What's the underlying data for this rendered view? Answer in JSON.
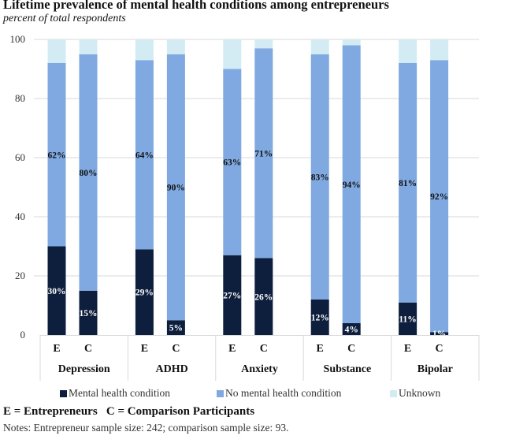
{
  "title": "Lifetime prevalence of mental health conditions among entrepreneurs",
  "subtitle": "percent of total respondents",
  "key_text": "E = Entrepreneurs   C = Comparison Participants",
  "notes": "Notes: Entrepreneur sample size: 242; comparison sample size: 93.",
  "colors": {
    "mental_health_condition": "#0e1f3e",
    "no_mental_health_condition": "#7fa9e0",
    "unknown": "#d3ecf3",
    "gridline": "#d9d9d9",
    "axis_text": "#333333"
  },
  "chart_data": {
    "type": "bar",
    "stacked": true,
    "title": "Lifetime prevalence of mental health conditions among entrepreneurs",
    "subtitle": "percent of total respondents",
    "xlabel": "",
    "ylabel": "",
    "ylim": [
      0,
      100
    ],
    "yticks": [
      0,
      20,
      40,
      60,
      80,
      100
    ],
    "grid": true,
    "legend_position": "bottom",
    "groups": [
      "Depression",
      "ADHD",
      "Anxiety",
      "Substance",
      "Bipolar"
    ],
    "subcategories": [
      "E",
      "C"
    ],
    "series": [
      {
        "name": "Mental health condition",
        "color_key": "mental_health_condition",
        "label_color": "#ffffff",
        "values": [
          [
            30,
            15
          ],
          [
            29,
            5
          ],
          [
            27,
            26
          ],
          [
            12,
            4
          ],
          [
            11,
            1
          ]
        ],
        "labels": [
          [
            "30%",
            "15%"
          ],
          [
            "29%",
            "5%"
          ],
          [
            "27%",
            "26%"
          ],
          [
            "12%",
            "4%"
          ],
          [
            "11%",
            "1%"
          ]
        ]
      },
      {
        "name": "No mental health condition",
        "color_key": "no_mental_health_condition",
        "label_color": "#111111",
        "values": [
          [
            62,
            80
          ],
          [
            64,
            90
          ],
          [
            63,
            71
          ],
          [
            83,
            94
          ],
          [
            81,
            92
          ]
        ],
        "labels": [
          [
            "62%",
            "80%"
          ],
          [
            "64%",
            "90%"
          ],
          [
            "63%",
            "71%"
          ],
          [
            "83%",
            "94%"
          ],
          [
            "81%",
            "92%"
          ]
        ]
      },
      {
        "name": "Unknown",
        "color_key": "unknown",
        "label_color": null,
        "values": [
          [
            8,
            5
          ],
          [
            7,
            5
          ],
          [
            10,
            3
          ],
          [
            5,
            2
          ],
          [
            8,
            7
          ]
        ],
        "labels": null
      }
    ]
  }
}
